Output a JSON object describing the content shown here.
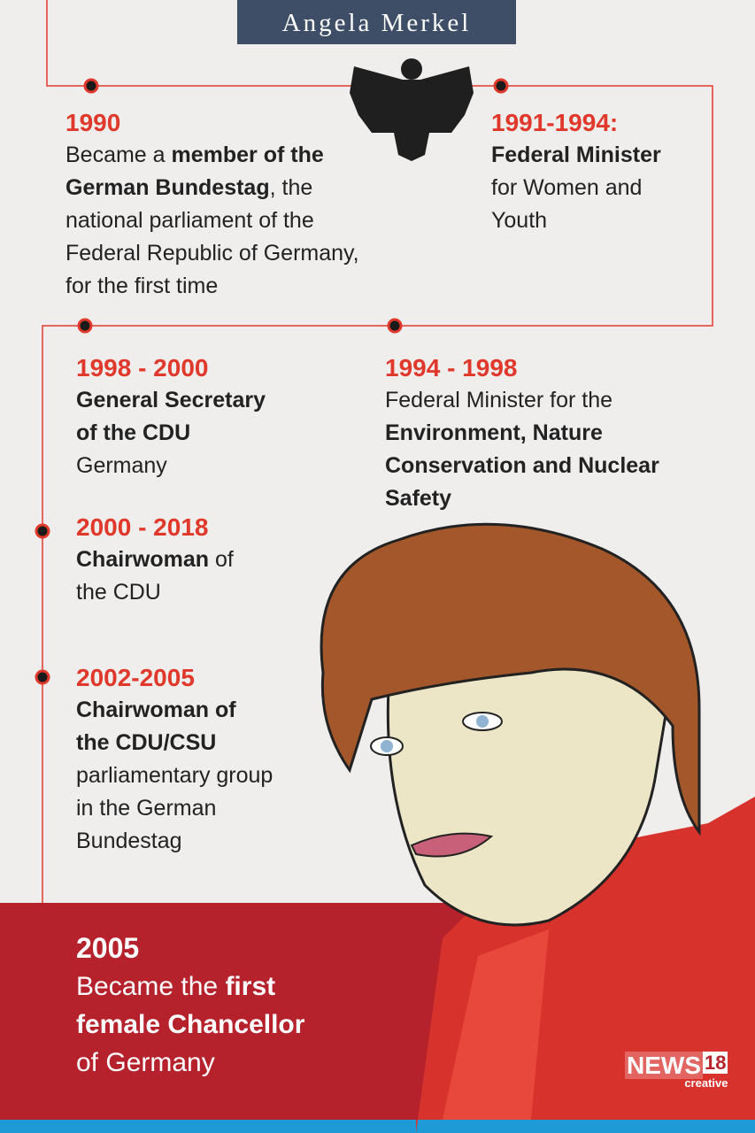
{
  "title": "Angela Merkel",
  "events": [
    {
      "date": "1990",
      "lines": [
        [
          {
            "text": "Became a "
          },
          {
            "text": "member of the",
            "bold": true
          }
        ],
        [
          {
            "text": "German Bundestag",
            "bold": true
          },
          {
            "text": ", the"
          }
        ],
        [
          {
            "text": "national parliament of the"
          }
        ],
        [
          {
            "text": "Federal Republic of Germany,"
          }
        ],
        [
          {
            "text": "for the first time"
          }
        ]
      ]
    },
    {
      "date": "1991-1994:",
      "lines": [
        [
          {
            "text": "Federal Minister",
            "bold": true
          }
        ],
        [
          {
            "text": "for Women and"
          }
        ],
        [
          {
            "text": "Youth"
          }
        ]
      ]
    },
    {
      "date": "1998 - 2000",
      "lines": [
        [
          {
            "text": "General Secretary",
            "bold": true
          }
        ],
        [
          {
            "text": "of the CDU",
            "bold": true
          }
        ],
        [
          {
            "text": "Germany"
          }
        ]
      ]
    },
    {
      "date": "1994 - 1998",
      "lines": [
        [
          {
            "text": "Federal Minister for the"
          }
        ],
        [
          {
            "text": "Environment, Nature",
            "bold": true
          }
        ],
        [
          {
            "text": "Conservation and Nuclear",
            "bold": true
          }
        ],
        [
          {
            "text": "Safety",
            "bold": true
          }
        ]
      ]
    },
    {
      "date": "2000 - 2018",
      "lines": [
        [
          {
            "text": "Chairwoman",
            "bold": true
          },
          {
            "text": " of"
          }
        ],
        [
          {
            "text": "the CDU"
          }
        ]
      ]
    },
    {
      "date": "2002-2005",
      "lines": [
        [
          {
            "text": "Chairwoman of",
            "bold": true
          }
        ],
        [
          {
            "text": "the CDU/CSU",
            "bold": true
          }
        ],
        [
          {
            "text": "parliamentary group"
          }
        ],
        [
          {
            "text": "in the German"
          }
        ],
        [
          {
            "text": "Bundestag"
          }
        ]
      ]
    }
  ],
  "highlight": {
    "date": "2005",
    "lines": [
      [
        {
          "text": "Became the "
        },
        {
          "text": "first",
          "bold": true
        }
      ],
      [
        {
          "text": "female Chancellor",
          "bold": true
        }
      ],
      [
        {
          "text": "of Germany"
        }
      ]
    ]
  },
  "logo": {
    "name": "NEWS",
    "number": "18",
    "sub": "creative"
  }
}
